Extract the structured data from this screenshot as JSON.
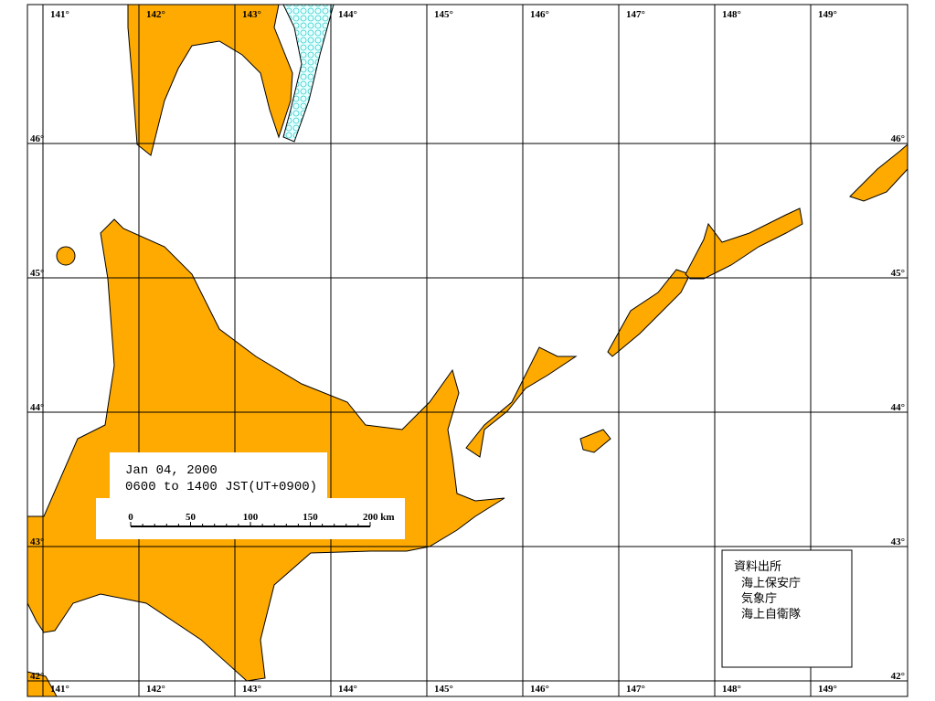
{
  "map": {
    "longitude_labels_top": [
      "141°",
      "142°",
      "143°",
      "144°",
      "145°",
      "146°",
      "147°",
      "148°",
      "149°"
    ],
    "longitude_labels_bottom": [
      "141°",
      "142°",
      "143°",
      "144°",
      "145°",
      "146°",
      "147°",
      "148°",
      "149°"
    ],
    "latitude_labels_left": [
      "46°",
      "45°",
      "44°",
      "43°",
      "42°"
    ],
    "latitude_labels_right": [
      "46°",
      "45°",
      "44°",
      "43°",
      "42°"
    ],
    "date": "Jan 04, 2000",
    "time": "0600 to 1400 JST(UT+0900)",
    "scale_labels": [
      "0",
      "50",
      "100",
      "150",
      "200 km"
    ],
    "source": {
      "title": "資料出所",
      "agencies": [
        "海上保安庁",
        "気象庁",
        "海上自衛隊"
      ]
    }
  }
}
